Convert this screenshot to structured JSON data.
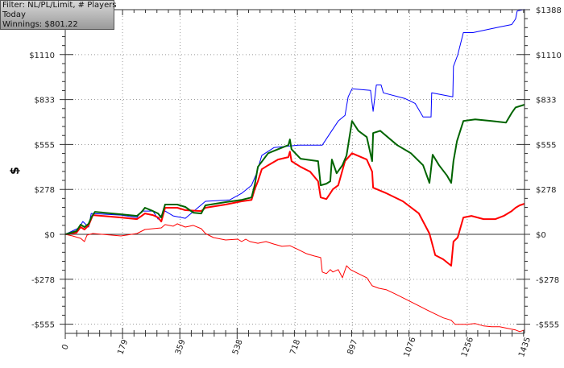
{
  "info": {
    "filter": "Filter: NL/PL/Limit, # Players",
    "period": "Today",
    "winnings": "Winnings: $801.22"
  },
  "chart_data": {
    "type": "line",
    "title": "",
    "xlabel": "",
    "ylabel": "$",
    "xlim": [
      0,
      1435
    ],
    "ylim": [
      -610,
      1388
    ],
    "grid": true,
    "x_ticks": [
      0,
      179,
      359,
      538,
      718,
      897,
      1076,
      1256,
      1435
    ],
    "x_tick_labels": [
      "0",
      "179",
      "359",
      "538",
      "718",
      "897",
      "1076",
      "1256",
      "1435"
    ],
    "y_ticks": [
      1388,
      1110,
      833,
      555,
      278,
      0,
      -278,
      -555
    ],
    "y_tick_labels": [
      "$1388",
      "$1110",
      "$833",
      "$555",
      "$278",
      "$0",
      "-$278",
      "-$555"
    ],
    "series": [
      {
        "color": "#0000ff",
        "width": 1,
        "points": [
          [
            0,
            0
          ],
          [
            43,
            40
          ],
          [
            55,
            79
          ],
          [
            73,
            45
          ],
          [
            81,
            129
          ],
          [
            174,
            119
          ],
          [
            224,
            104
          ],
          [
            239,
            144
          ],
          [
            274,
            144
          ],
          [
            290,
            94
          ],
          [
            312,
            144
          ],
          [
            337,
            114
          ],
          [
            375,
            99
          ],
          [
            438,
            204
          ],
          [
            514,
            213
          ],
          [
            551,
            253
          ],
          [
            582,
            303
          ],
          [
            597,
            372
          ],
          [
            614,
            487
          ],
          [
            652,
            536
          ],
          [
            728,
            551
          ],
          [
            803,
            551
          ],
          [
            828,
            626
          ],
          [
            853,
            700
          ],
          [
            874,
            735
          ],
          [
            884,
            849
          ],
          [
            896,
            899
          ],
          [
            954,
            889
          ],
          [
            962,
            760
          ],
          [
            972,
            923
          ],
          [
            987,
            923
          ],
          [
            994,
            874
          ],
          [
            1062,
            839
          ],
          [
            1093,
            809
          ],
          [
            1118,
            725
          ],
          [
            1143,
            725
          ],
          [
            1145,
            874
          ],
          [
            1211,
            849
          ],
          [
            1213,
            1038
          ],
          [
            1226,
            1107
          ],
          [
            1244,
            1246
          ],
          [
            1274,
            1246
          ],
          [
            1357,
            1281
          ],
          [
            1395,
            1296
          ],
          [
            1407,
            1331
          ],
          [
            1412,
            1380
          ],
          [
            1435,
            1390
          ]
        ]
      },
      {
        "color": "#ff0000",
        "width": 1,
        "points": [
          [
            0,
            0
          ],
          [
            23,
            -10
          ],
          [
            48,
            -25
          ],
          [
            60,
            -45
          ],
          [
            68,
            -5
          ],
          [
            86,
            5
          ],
          [
            174,
            -10
          ],
          [
            224,
            5
          ],
          [
            249,
            30
          ],
          [
            274,
            35
          ],
          [
            300,
            40
          ],
          [
            312,
            60
          ],
          [
            337,
            50
          ],
          [
            350,
            65
          ],
          [
            375,
            45
          ],
          [
            400,
            55
          ],
          [
            425,
            35
          ],
          [
            438,
            5
          ],
          [
            463,
            -20
          ],
          [
            501,
            -35
          ],
          [
            539,
            -30
          ],
          [
            551,
            -45
          ],
          [
            564,
            -30
          ],
          [
            577,
            -45
          ],
          [
            602,
            -55
          ],
          [
            627,
            -45
          ],
          [
            652,
            -60
          ],
          [
            677,
            -74
          ],
          [
            702,
            -70
          ],
          [
            728,
            -94
          ],
          [
            753,
            -119
          ],
          [
            778,
            -134
          ],
          [
            798,
            -144
          ],
          [
            803,
            -233
          ],
          [
            816,
            -243
          ],
          [
            828,
            -218
          ],
          [
            836,
            -233
          ],
          [
            853,
            -218
          ],
          [
            866,
            -268
          ],
          [
            879,
            -194
          ],
          [
            891,
            -218
          ],
          [
            916,
            -243
          ],
          [
            942,
            -268
          ],
          [
            959,
            -318
          ],
          [
            979,
            -333
          ],
          [
            1004,
            -343
          ],
          [
            1030,
            -367
          ],
          [
            1055,
            -392
          ],
          [
            1080,
            -417
          ],
          [
            1105,
            -442
          ],
          [
            1130,
            -467
          ],
          [
            1156,
            -492
          ],
          [
            1181,
            -516
          ],
          [
            1206,
            -531
          ],
          [
            1218,
            -556
          ],
          [
            1256,
            -556
          ],
          [
            1281,
            -551
          ],
          [
            1307,
            -566
          ],
          [
            1332,
            -571
          ],
          [
            1357,
            -571
          ],
          [
            1382,
            -581
          ],
          [
            1407,
            -591
          ],
          [
            1420,
            -601
          ],
          [
            1435,
            -591
          ]
        ]
      },
      {
        "color": "#ff0000",
        "width": 2,
        "points": [
          [
            0,
            0
          ],
          [
            35,
            10
          ],
          [
            48,
            45
          ],
          [
            60,
            30
          ],
          [
            73,
            55
          ],
          [
            86,
            119
          ],
          [
            174,
            104
          ],
          [
            224,
            94
          ],
          [
            239,
            114
          ],
          [
            249,
            129
          ],
          [
            274,
            119
          ],
          [
            290,
            104
          ],
          [
            300,
            79
          ],
          [
            312,
            164
          ],
          [
            350,
            164
          ],
          [
            375,
            149
          ],
          [
            425,
            144
          ],
          [
            438,
            164
          ],
          [
            501,
            184
          ],
          [
            551,
            204
          ],
          [
            582,
            213
          ],
          [
            592,
            278
          ],
          [
            602,
            328
          ],
          [
            614,
            402
          ],
          [
            634,
            427
          ],
          [
            665,
            462
          ],
          [
            697,
            477
          ],
          [
            702,
            511
          ],
          [
            707,
            452
          ],
          [
            735,
            417
          ],
          [
            765,
            387
          ],
          [
            790,
            328
          ],
          [
            798,
            228
          ],
          [
            816,
            218
          ],
          [
            828,
            253
          ],
          [
            836,
            278
          ],
          [
            853,
            303
          ],
          [
            874,
            452
          ],
          [
            896,
            501
          ],
          [
            942,
            462
          ],
          [
            959,
            387
          ],
          [
            962,
            288
          ],
          [
            1004,
            253
          ],
          [
            1055,
            204
          ],
          [
            1105,
            129
          ],
          [
            1138,
            5
          ],
          [
            1156,
            -129
          ],
          [
            1181,
            -154
          ],
          [
            1206,
            -194
          ],
          [
            1213,
            -45
          ],
          [
            1226,
            -20
          ],
          [
            1244,
            104
          ],
          [
            1269,
            114
          ],
          [
            1307,
            94
          ],
          [
            1344,
            94
          ],
          [
            1370,
            114
          ],
          [
            1395,
            144
          ],
          [
            1407,
            164
          ],
          [
            1420,
            179
          ],
          [
            1435,
            189
          ]
        ]
      },
      {
        "color": "#006400",
        "width": 2,
        "points": [
          [
            0,
            0
          ],
          [
            35,
            20
          ],
          [
            48,
            60
          ],
          [
            60,
            45
          ],
          [
            73,
            65
          ],
          [
            81,
            104
          ],
          [
            93,
            139
          ],
          [
            174,
            124
          ],
          [
            224,
            114
          ],
          [
            239,
            139
          ],
          [
            249,
            164
          ],
          [
            274,
            144
          ],
          [
            290,
            129
          ],
          [
            300,
            104
          ],
          [
            312,
            184
          ],
          [
            350,
            184
          ],
          [
            375,
            169
          ],
          [
            400,
            134
          ],
          [
            425,
            129
          ],
          [
            438,
            179
          ],
          [
            501,
            199
          ],
          [
            551,
            213
          ],
          [
            582,
            228
          ],
          [
            592,
            303
          ],
          [
            602,
            417
          ],
          [
            634,
            501
          ],
          [
            665,
            526
          ],
          [
            697,
            551
          ],
          [
            702,
            586
          ],
          [
            707,
            526
          ],
          [
            735,
            467
          ],
          [
            790,
            452
          ],
          [
            798,
            303
          ],
          [
            816,
            313
          ],
          [
            828,
            328
          ],
          [
            833,
            462
          ],
          [
            848,
            377
          ],
          [
            866,
            427
          ],
          [
            879,
            487
          ],
          [
            896,
            700
          ],
          [
            916,
            640
          ],
          [
            942,
            601
          ],
          [
            959,
            452
          ],
          [
            962,
            626
          ],
          [
            984,
            640
          ],
          [
            1037,
            551
          ],
          [
            1080,
            501
          ],
          [
            1118,
            427
          ],
          [
            1138,
            318
          ],
          [
            1148,
            492
          ],
          [
            1168,
            427
          ],
          [
            1193,
            362
          ],
          [
            1206,
            318
          ],
          [
            1213,
            452
          ],
          [
            1224,
            576
          ],
          [
            1244,
            700
          ],
          [
            1281,
            710
          ],
          [
            1332,
            700
          ],
          [
            1377,
            690
          ],
          [
            1395,
            750
          ],
          [
            1407,
            784
          ],
          [
            1435,
            801
          ]
        ]
      }
    ]
  }
}
